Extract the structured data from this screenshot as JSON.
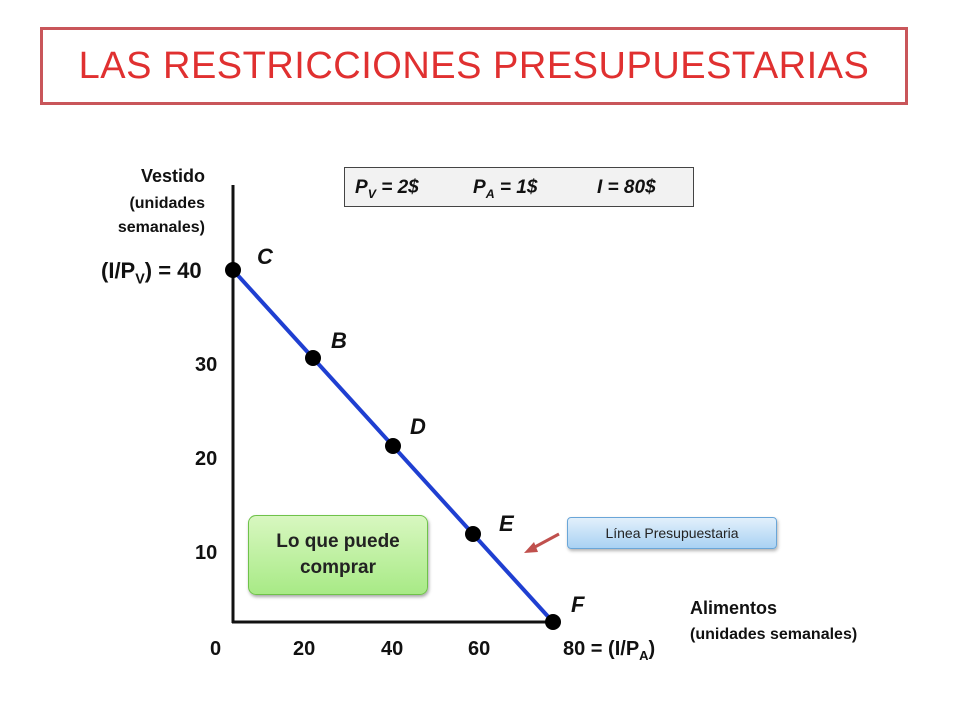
{
  "title": "LAS RESTRICCIONES PRESUPUESTARIAS",
  "params": {
    "pv_main": "P",
    "pv_sub": "V",
    "pv_rest": " = 2$",
    "pa_main": "P",
    "pa_sub": "A",
    "pa_rest": " = 1$",
    "income": "I = 80$"
  },
  "y_axis": {
    "label_line1": "Vestido",
    "label_line2": "(unidades",
    "label_line3": "semanales)",
    "intercept_open": "(I/P",
    "intercept_sub": "V",
    "intercept_close": ") = 40"
  },
  "x_axis": {
    "label_line1": "Alimentos",
    "label_line2": "(unidades semanales)",
    "intercept_open": "80 = (I/P",
    "intercept_sub": "A",
    "intercept_close": ")"
  },
  "feasible_label_line1": "Lo que puede",
  "feasible_label_line2": "comprar",
  "budget_line_label": "Línea Presupuestaria",
  "colors": {
    "budget_line": "#1f3fd1",
    "title": "#e03030",
    "arrow": "#c0504d"
  },
  "chart_data": {
    "type": "line",
    "title": "LAS RESTRICCIONES PRESUPUESTARIAS",
    "xlabel": "Alimentos (unidades semanales)",
    "ylabel": "Vestido (unidades semanales)",
    "xlim": [
      0,
      80
    ],
    "ylim": [
      0,
      40
    ],
    "x_ticks": [
      "0",
      "20",
      "40",
      "60"
    ],
    "y_ticks": [
      "10",
      "20",
      "30"
    ],
    "series": [
      {
        "values": [
          [
            0,
            40
          ],
          [
            20,
            30
          ],
          [
            40,
            20
          ],
          [
            60,
            10
          ],
          [
            80,
            0
          ]
        ]
      }
    ],
    "points": [
      {
        "label": "C",
        "x": 0,
        "y": 40
      },
      {
        "label": "B",
        "x": 20,
        "y": 30
      },
      {
        "label": "D",
        "x": 40,
        "y": 20
      },
      {
        "label": "E",
        "x": 60,
        "y": 10
      },
      {
        "label": "F",
        "x": 80,
        "y": 0
      }
    ]
  }
}
